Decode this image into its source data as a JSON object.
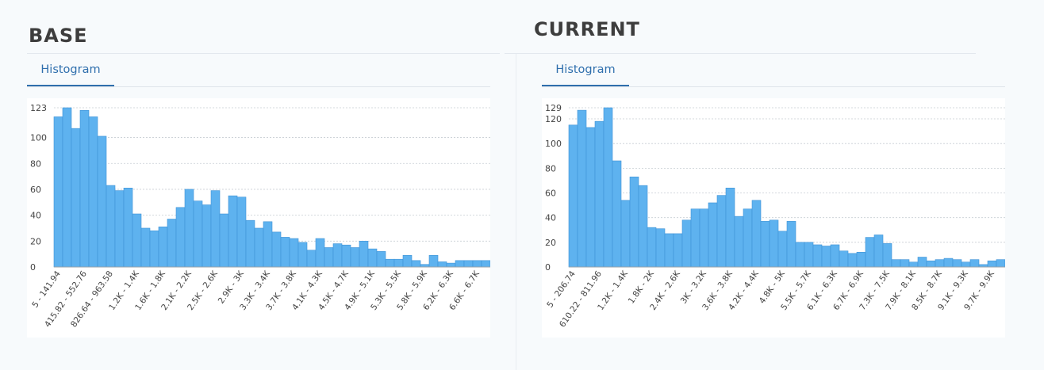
{
  "panels": [
    {
      "heading": "BASE",
      "tab_label": "Histogram",
      "chart_data": {
        "type": "bar",
        "title": "",
        "xlabel": "",
        "ylabel": "",
        "ylim": [
          0,
          123
        ],
        "yticks": [
          0,
          20,
          40,
          60,
          80,
          100,
          123
        ],
        "grid": true,
        "xtick_labels": [
          "5 - 141.94",
          "415.82 - 552.76",
          "826.64 - 963.58",
          "1.2K - 1.4K",
          "1.6K - 1.8K",
          "2.1K - 2.2K",
          "2.5K - 2.6K",
          "2.9K - 3K",
          "3.3K - 3.4K",
          "3.7K - 3.8K",
          "4.1K - 4.3K",
          "4.5K - 4.7K",
          "4.9K - 5.1K",
          "5.3K - 5.5K",
          "5.8K - 5.9K",
          "6.2K - 6.3K",
          "6.6K - 6.7K"
        ],
        "tick_every": 3,
        "values": [
          116,
          123,
          107,
          121,
          116,
          101,
          63,
          59,
          61,
          41,
          30,
          28,
          31,
          37,
          46,
          60,
          51,
          48,
          59,
          41,
          55,
          54,
          36,
          30,
          35,
          27,
          23,
          22,
          19,
          13,
          22,
          15,
          18,
          17,
          15,
          20,
          14,
          12,
          6,
          6,
          9,
          5,
          2,
          9,
          4,
          3,
          5,
          5,
          5,
          5
        ]
      }
    },
    {
      "heading": "CURRENT",
      "tab_label": "Histogram",
      "chart_data": {
        "type": "bar",
        "title": "",
        "xlabel": "",
        "ylabel": "",
        "ylim": [
          0,
          129
        ],
        "yticks": [
          0,
          20,
          40,
          60,
          80,
          100,
          120,
          129
        ],
        "grid": true,
        "xtick_labels": [
          "5 - 206.74",
          "610.22 - 811.96",
          "1.2K - 1.4K",
          "1.8K - 2K",
          "2.4K - 2.6K",
          "3K - 3.2K",
          "3.6K - 3.8K",
          "4.2K - 4.4K",
          "4.8K - 5K",
          "5.5K - 5.7K",
          "6.1K - 6.3K",
          "6.7K - 6.9K",
          "7.3K - 7.5K",
          "7.9K - 8.1K",
          "8.5K - 8.7K",
          "9.1K - 9.3K",
          "9.7K - 9.9K"
        ],
        "tick_every": 3,
        "values": [
          115,
          127,
          113,
          118,
          129,
          86,
          54,
          73,
          66,
          32,
          31,
          27,
          27,
          38,
          47,
          47,
          52,
          58,
          64,
          41,
          47,
          54,
          37,
          38,
          29,
          37,
          20,
          20,
          18,
          17,
          18,
          13,
          11,
          12,
          24,
          26,
          19,
          6,
          6,
          4,
          8,
          5,
          6,
          7,
          6,
          4,
          6,
          2,
          5,
          6
        ]
      }
    }
  ]
}
